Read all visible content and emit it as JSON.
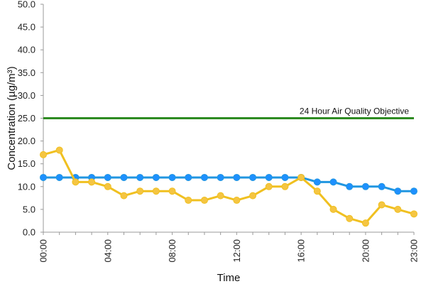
{
  "chart_data": {
    "type": "line",
    "xlabel": "Time",
    "ylabel": "Concentration (µg/m³)",
    "ylim": [
      0,
      50
    ],
    "y_ticks": [
      "0.0",
      "5.0",
      "10.0",
      "15.0",
      "20.0",
      "25.0",
      "30.0",
      "35.0",
      "40.0",
      "45.0",
      "50.0"
    ],
    "x_ticks": [
      "00:00",
      "04:00",
      "08:00",
      "12:00",
      "16:00",
      "20:00",
      "23:00"
    ],
    "x_tick_hours": [
      0,
      4,
      8,
      12,
      16,
      20,
      23
    ],
    "x": [
      0,
      1,
      2,
      3,
      4,
      5,
      6,
      7,
      8,
      9,
      10,
      11,
      12,
      13,
      14,
      15,
      16,
      17,
      18,
      19,
      20,
      21,
      22,
      23
    ],
    "grid": false,
    "series": [
      {
        "color": "#2196e0",
        "marker_color": "#1e90ff",
        "values": [
          12,
          12,
          12,
          12,
          12,
          12,
          12,
          12,
          12,
          12,
          12,
          12,
          12,
          12,
          12,
          12,
          12,
          11,
          11,
          10,
          10,
          10,
          9,
          9
        ]
      },
      {
        "color": "#f0c020",
        "marker_color": "#f5c542",
        "values": [
          17,
          18,
          11,
          11,
          10,
          8,
          9,
          9,
          9,
          7,
          7,
          8,
          7,
          8,
          10,
          10,
          12,
          9,
          5,
          3,
          2,
          6,
          5,
          4
        ]
      }
    ],
    "reference_line": {
      "label": "24 Hour Air Quality Objective",
      "value": 25,
      "color": "#2e8b22"
    }
  }
}
